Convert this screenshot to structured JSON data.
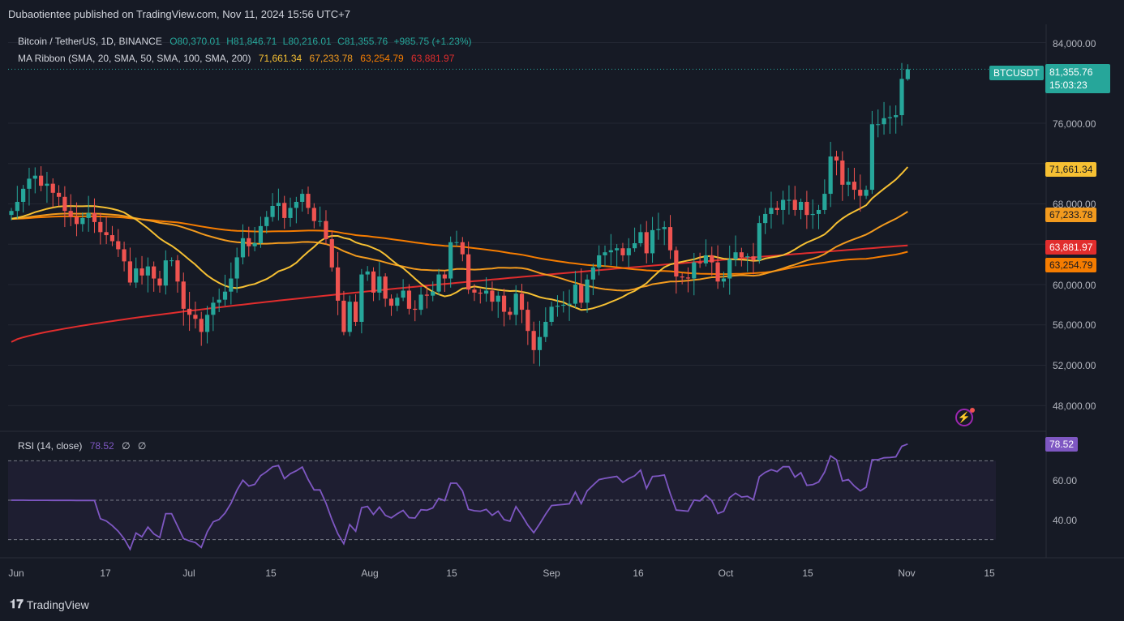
{
  "header": {
    "publisher": "Dubaotientee published on TradingView.com, Nov 11, 2024 15:56 UTC+7"
  },
  "legend": {
    "symbol": "Bitcoin / TetherUS, 1D, BINANCE",
    "open": "O80,370.01",
    "high": "H81,846.71",
    "low": "L80,216.01",
    "close": "C81,355.76",
    "change": "+985.75 (+1.23%)",
    "ma_label": "MA Ribbon (SMA, 20, SMA, 50, SMA, 100, SMA, 200)",
    "ma20": "71,661.34",
    "ma50": "67,233.78",
    "ma100": "63,254.79",
    "ma200": "63,881.97",
    "rsi_label": "RSI (14, close)",
    "rsi_value": "78.52",
    "rsi_extra1": "∅",
    "rsi_extra2": "∅"
  },
  "tags": {
    "symbol": "BTCUSDT",
    "price": "81,355.76",
    "countdown": "15:03:23",
    "ma20": "71,661.34",
    "ma50": "67,233.78",
    "ma200": "63,881.97",
    "ma100": "63,254.79",
    "rsi": "78.52"
  },
  "footer": {
    "brand": "TradingView"
  },
  "colors": {
    "up": "#26a69a",
    "down": "#ef5350",
    "ma20": "#f6c033",
    "ma50": "#f29a1e",
    "ma100": "#f57c00",
    "ma200": "#e12d2d",
    "rsi": "#7e57c2"
  },
  "chart_data": {
    "type": "candlestick",
    "symbol": "BTCUSDT",
    "price_axis": {
      "ticks": [
        84000,
        76000,
        68000,
        60000,
        56000,
        52000,
        48000
      ],
      "labels": [
        "84,000.00",
        "76,000.00",
        "68,000.00",
        "60,000.00",
        "56,000.00",
        "52,000.00",
        "48,000.00"
      ]
    },
    "rsi_axis": {
      "ticks": [
        60,
        40
      ],
      "labels": [
        "60.00",
        "40.00"
      ],
      "bands": [
        70,
        50,
        30
      ]
    },
    "time_axis": [
      "Jun",
      "17",
      "Jul",
      "15",
      "Aug",
      "15",
      "Sep",
      "16",
      "Oct",
      "15",
      "Nov",
      "15"
    ],
    "closes": [
      67300,
      68200,
      69500,
      70500,
      70800,
      69800,
      70000,
      69100,
      68700,
      67300,
      66700,
      66000,
      66600,
      67100,
      66200,
      65200,
      64900,
      64300,
      63500,
      62300,
      60200,
      61600,
      60900,
      61800,
      60600,
      59900,
      62400,
      62400,
      60300,
      57600,
      57000,
      56600,
      55300,
      57000,
      58200,
      58500,
      59300,
      60600,
      62700,
      64600,
      63800,
      64100,
      65800,
      66700,
      67800,
      68100,
      66600,
      67600,
      68200,
      69000,
      67600,
      66300,
      66300,
      64500,
      61700,
      58400,
      55300,
      58300,
      56300,
      61000,
      61300,
      59200,
      60800,
      58600,
      57900,
      58700,
      59400,
      57600,
      57500,
      59000,
      58900,
      59300,
      61000,
      60600,
      64200,
      64200,
      63000,
      59500,
      59200,
      59100,
      59400,
      58300,
      58900,
      57300,
      57000,
      59100,
      57500,
      55400,
      53500,
      54800,
      56300,
      57800,
      57900,
      58000,
      58100,
      60000,
      58200,
      60500,
      61700,
      62900,
      63200,
      63400,
      63600,
      62900,
      63600,
      64100,
      65200,
      63100,
      65400,
      65500,
      65700,
      63400,
      60800,
      60700,
      60600,
      62200,
      62100,
      62900,
      62200,
      60300,
      60600,
      62500,
      63200,
      62700,
      62800,
      62400,
      66100,
      67000,
      67600,
      67400,
      68400,
      68400,
      67400,
      68200,
      66900,
      67000,
      67400,
      69000,
      72700,
      72300,
      69900,
      70200,
      69400,
      68800,
      69400,
      75900,
      75900,
      76500,
      76600,
      76800,
      80400,
      81356
    ],
    "last": {
      "open": 80370.01,
      "high": 81846.71,
      "low": 80216.01,
      "close": 81355.76,
      "change": 985.75,
      "change_pct": 1.23
    },
    "moving_averages": [
      {
        "name": "SMA 20",
        "last": 71661.34
      },
      {
        "name": "SMA 50",
        "last": 67233.78
      },
      {
        "name": "SMA 100",
        "last": 63254.79
      },
      {
        "name": "SMA 200",
        "last": 63881.97
      }
    ],
    "rsi_last": 78.52
  }
}
